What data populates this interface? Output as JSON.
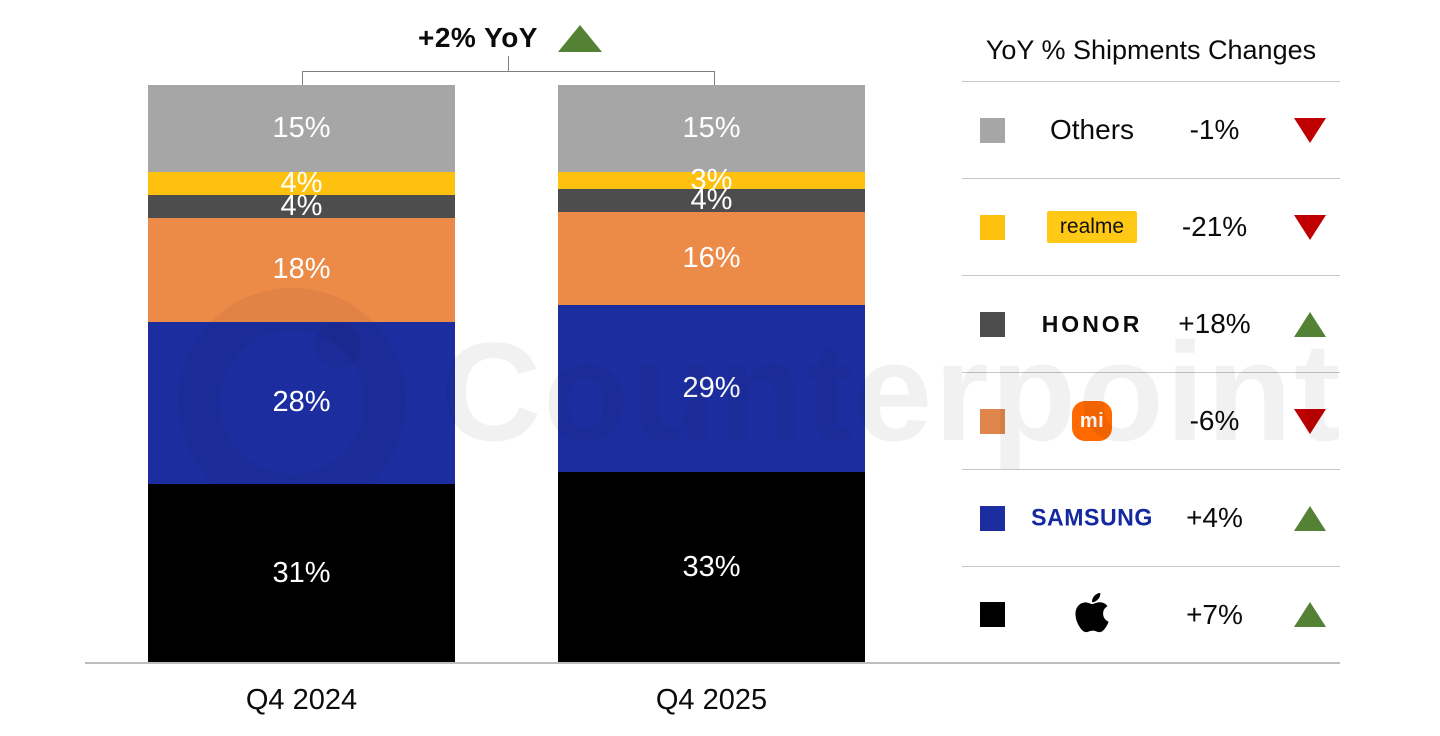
{
  "title": {
    "label": "+2% YoY",
    "direction": "up"
  },
  "chart_data": {
    "type": "bar",
    "stacked": true,
    "orientation": "vertical",
    "categories": [
      "Q4 2024",
      "Q4 2025"
    ],
    "series_order": "top-to-bottom",
    "series": [
      {
        "name": "Others",
        "color": "#a6a6a6",
        "values": [
          15,
          15
        ]
      },
      {
        "name": "realme",
        "color": "#fec110",
        "values": [
          4,
          3
        ]
      },
      {
        "name": "HONOR",
        "color": "#4d4d4d",
        "values": [
          4,
          4
        ]
      },
      {
        "name": "Xiaomi",
        "color": "#ec8a47",
        "values": [
          18,
          16
        ]
      },
      {
        "name": "Samsung",
        "color": "#1c2da0",
        "values": [
          28,
          29
        ]
      },
      {
        "name": "Apple",
        "color": "#000000",
        "values": [
          31,
          33
        ]
      }
    ],
    "value_suffix": "%",
    "total_annotation": "+2% YoY",
    "ylim": [
      0,
      100
    ],
    "grid": false,
    "legend_position": "right"
  },
  "legend": {
    "header": "YoY % Shipments Changes",
    "rows": [
      {
        "brand": "Others",
        "logo": "text",
        "display": "Others",
        "change": "-1%",
        "direction": "down",
        "swatch": "#a6a6a6"
      },
      {
        "brand": "realme",
        "logo": "realme",
        "display": "realme",
        "change": "-21%",
        "direction": "down",
        "swatch": "#fec110"
      },
      {
        "brand": "HONOR",
        "logo": "honor",
        "display": "HONOR",
        "change": "+18%",
        "direction": "up",
        "swatch": "#4d4d4d"
      },
      {
        "brand": "Xiaomi",
        "logo": "xiaomi",
        "display": "mi",
        "change": "-6%",
        "direction": "down",
        "swatch": "#e0854c"
      },
      {
        "brand": "Samsung",
        "logo": "samsung",
        "display": "SAMSUNG",
        "change": "+4%",
        "direction": "up",
        "swatch": "#1c2da0"
      },
      {
        "brand": "Apple",
        "logo": "apple",
        "display": "",
        "change": "+7%",
        "direction": "up",
        "swatch": "#000000"
      }
    ]
  },
  "watermark": {
    "text": "Counterpoint"
  },
  "colors": {
    "up": "#548235",
    "down": "#c00000",
    "axis": "#bdbdbd"
  }
}
